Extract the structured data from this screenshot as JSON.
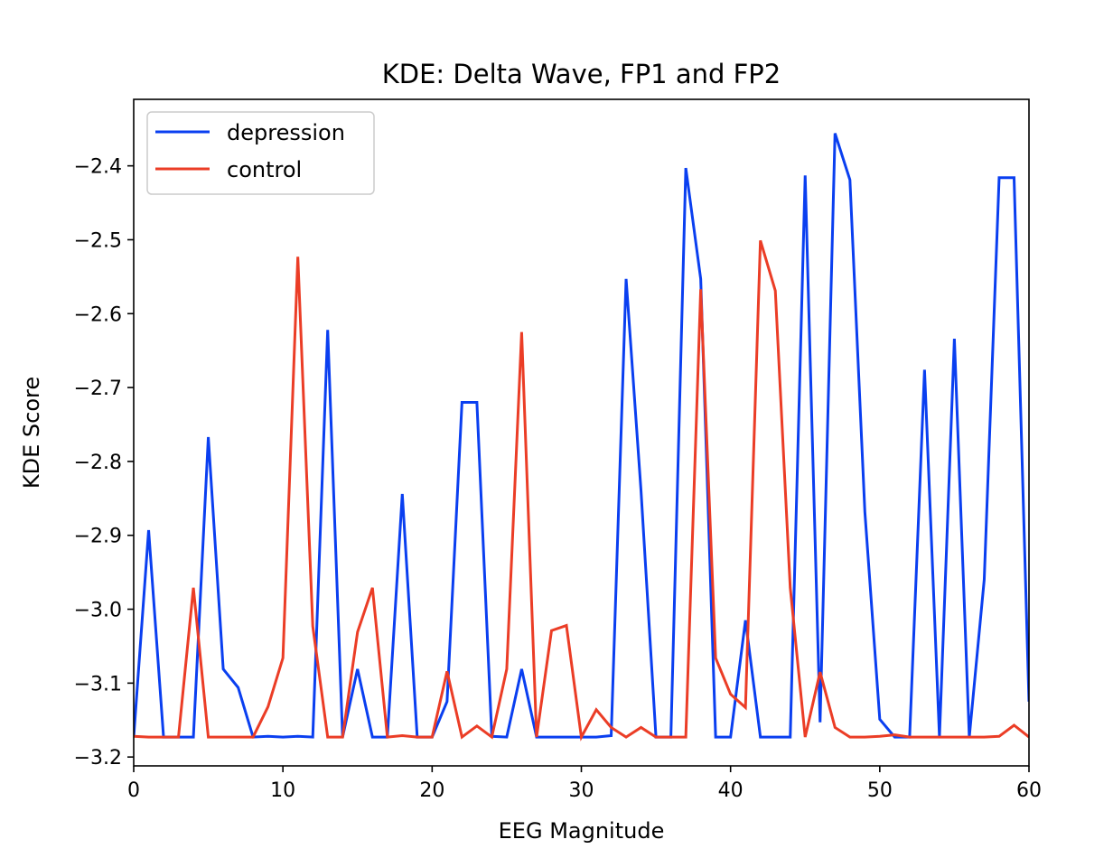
{
  "chart_data": {
    "type": "line",
    "title": "KDE: Delta Wave, FP1 and FP2",
    "xlabel": "EEG Magnitude",
    "ylabel": "KDE Score",
    "xlim": [
      0,
      60
    ],
    "ylim": [
      -3.212,
      -2.31
    ],
    "xticks": [
      0,
      10,
      20,
      30,
      40,
      50,
      60
    ],
    "xtick_labels": [
      "0",
      "10",
      "20",
      "30",
      "40",
      "50",
      "60"
    ],
    "yticks": [
      -3.2,
      -3.1,
      -3.0,
      -2.9,
      -2.8,
      -2.7,
      -2.6,
      -2.5,
      -2.4
    ],
    "ytick_labels": [
      "−3.2",
      "−3.1",
      "−3.0",
      "−2.9",
      "−2.8",
      "−2.7",
      "−2.6",
      "−2.5",
      "−2.4"
    ],
    "grid": false,
    "legend_position": "upper-left",
    "series": [
      {
        "name": "depression",
        "color": "#0a3ff0",
        "x": [
          0,
          1,
          2,
          3,
          4,
          5,
          6,
          7,
          8,
          9,
          10,
          11,
          12,
          13,
          14,
          15,
          16,
          17,
          18,
          19,
          20,
          21,
          22,
          23,
          24,
          25,
          26,
          27,
          28,
          29,
          30,
          31,
          32,
          33,
          34,
          35,
          36,
          37,
          38,
          39,
          40,
          41,
          42,
          43,
          44,
          45,
          46,
          47,
          48,
          49,
          50,
          51,
          52,
          53,
          54,
          55,
          56,
          57,
          58,
          59,
          60
        ],
        "values": [
          -3.173,
          -2.893,
          -3.173,
          -3.173,
          -3.173,
          -2.767,
          -3.081,
          -3.106,
          -3.173,
          -3.172,
          -3.173,
          -3.172,
          -3.173,
          -2.622,
          -3.173,
          -3.081,
          -3.173,
          -3.173,
          -2.844,
          -3.173,
          -3.173,
          -3.125,
          -2.72,
          -2.72,
          -3.172,
          -3.173,
          -3.081,
          -3.173,
          -3.173,
          -3.173,
          -3.173,
          -3.173,
          -3.171,
          -2.553,
          -2.84,
          -3.173,
          -3.173,
          -2.403,
          -2.553,
          -3.173,
          -3.173,
          -3.015,
          -3.173,
          -3.173,
          -3.173,
          -2.413,
          -3.153,
          -2.356,
          -2.419,
          -2.868,
          -3.149,
          -3.173,
          -3.173,
          -2.676,
          -3.173,
          -2.634,
          -3.173,
          -2.96,
          -2.416,
          -2.416,
          -3.125
        ]
      },
      {
        "name": "control",
        "color": "#eb3d26",
        "x": [
          0,
          1,
          2,
          3,
          4,
          5,
          6,
          7,
          8,
          9,
          10,
          11,
          12,
          13,
          14,
          15,
          16,
          17,
          18,
          19,
          20,
          21,
          22,
          23,
          24,
          25,
          26,
          27,
          28,
          29,
          30,
          31,
          32,
          33,
          34,
          35,
          36,
          37,
          38,
          39,
          40,
          41,
          42,
          43,
          44,
          45,
          46,
          47,
          48,
          49,
          50,
          51,
          52,
          53,
          54,
          55,
          56,
          57,
          58,
          59,
          60
        ],
        "values": [
          -3.172,
          -3.173,
          -3.173,
          -3.173,
          -2.971,
          -3.173,
          -3.173,
          -3.173,
          -3.173,
          -3.132,
          -3.066,
          -2.523,
          -3.023,
          -3.173,
          -3.173,
          -3.031,
          -2.971,
          -3.173,
          -3.171,
          -3.173,
          -3.173,
          -3.084,
          -3.173,
          -3.158,
          -3.173,
          -3.081,
          -2.625,
          -3.173,
          -3.029,
          -3.022,
          -3.173,
          -3.136,
          -3.16,
          -3.173,
          -3.16,
          -3.173,
          -3.173,
          -3.173,
          -2.567,
          -3.066,
          -3.115,
          -3.133,
          -2.501,
          -2.569,
          -2.971,
          -3.173,
          -3.085,
          -3.16,
          -3.173,
          -3.173,
          -3.172,
          -3.17,
          -3.173,
          -3.173,
          -3.173,
          -3.173,
          -3.173,
          -3.173,
          -3.172,
          -3.157,
          -3.173
        ]
      }
    ]
  }
}
